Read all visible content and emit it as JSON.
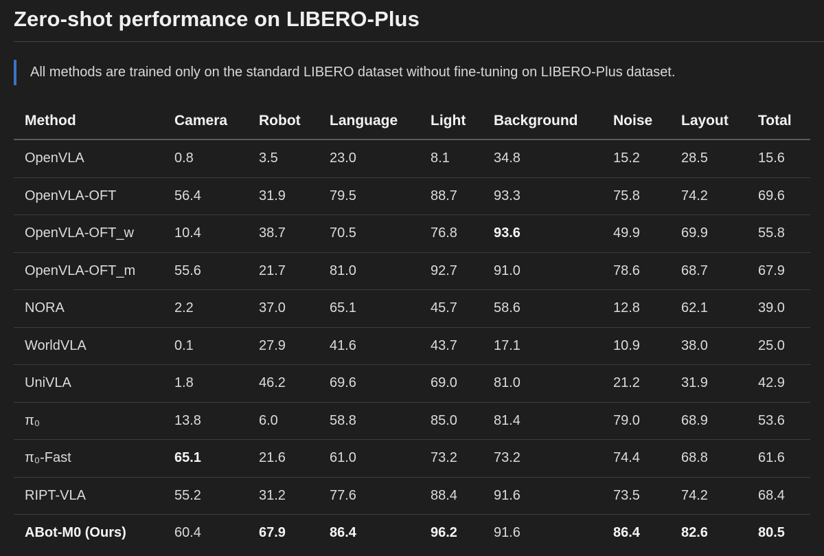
{
  "title": "Zero-shot performance on LIBERO-Plus",
  "note": "All methods are trained only on the standard LIBERO dataset without fine-tuning on LIBERO-Plus dataset.",
  "accent_color": "#3a73c4",
  "table": {
    "headers": [
      "Method",
      "Camera",
      "Robot",
      "Language",
      "Light",
      "Background",
      "Noise",
      "Layout",
      "Total"
    ],
    "rows": [
      {
        "cells": [
          "OpenVLA",
          "0.8",
          "3.5",
          "23.0",
          "8.1",
          "34.8",
          "15.2",
          "28.5",
          "15.6"
        ],
        "bold": []
      },
      {
        "cells": [
          "OpenVLA-OFT",
          "56.4",
          "31.9",
          "79.5",
          "88.7",
          "93.3",
          "75.8",
          "74.2",
          "69.6"
        ],
        "bold": []
      },
      {
        "cells": [
          "OpenVLA-OFT_w",
          "10.4",
          "38.7",
          "70.5",
          "76.8",
          "93.6",
          "49.9",
          "69.9",
          "55.8"
        ],
        "bold": [
          5
        ]
      },
      {
        "cells": [
          "OpenVLA-OFT_m",
          "55.6",
          "21.7",
          "81.0",
          "92.7",
          "91.0",
          "78.6",
          "68.7",
          "67.9"
        ],
        "bold": []
      },
      {
        "cells": [
          "NORA",
          "2.2",
          "37.0",
          "65.1",
          "45.7",
          "58.6",
          "12.8",
          "62.1",
          "39.0"
        ],
        "bold": []
      },
      {
        "cells": [
          "WorldVLA",
          "0.1",
          "27.9",
          "41.6",
          "43.7",
          "17.1",
          "10.9",
          "38.0",
          "25.0"
        ],
        "bold": []
      },
      {
        "cells": [
          "UniVLA",
          "1.8",
          "46.2",
          "69.6",
          "69.0",
          "81.0",
          "21.2",
          "31.9",
          "42.9"
        ],
        "bold": []
      },
      {
        "cells": [
          "π₀",
          "13.8",
          "6.0",
          "58.8",
          "85.0",
          "81.4",
          "79.0",
          "68.9",
          "53.6"
        ],
        "bold": []
      },
      {
        "cells": [
          "π₀-Fast",
          "65.1",
          "21.6",
          "61.0",
          "73.2",
          "73.2",
          "74.4",
          "68.8",
          "61.6"
        ],
        "bold": [
          1
        ]
      },
      {
        "cells": [
          "RIPT-VLA",
          "55.2",
          "31.2",
          "77.6",
          "88.4",
          "91.6",
          "73.5",
          "74.2",
          "68.4"
        ],
        "bold": []
      },
      {
        "cells": [
          "ABot-M0 (Ours)",
          "60.4",
          "67.9",
          "86.4",
          "96.2",
          "91.6",
          "86.4",
          "82.6",
          "80.5"
        ],
        "bold": [
          0,
          2,
          3,
          4,
          6,
          7,
          8
        ]
      }
    ]
  }
}
